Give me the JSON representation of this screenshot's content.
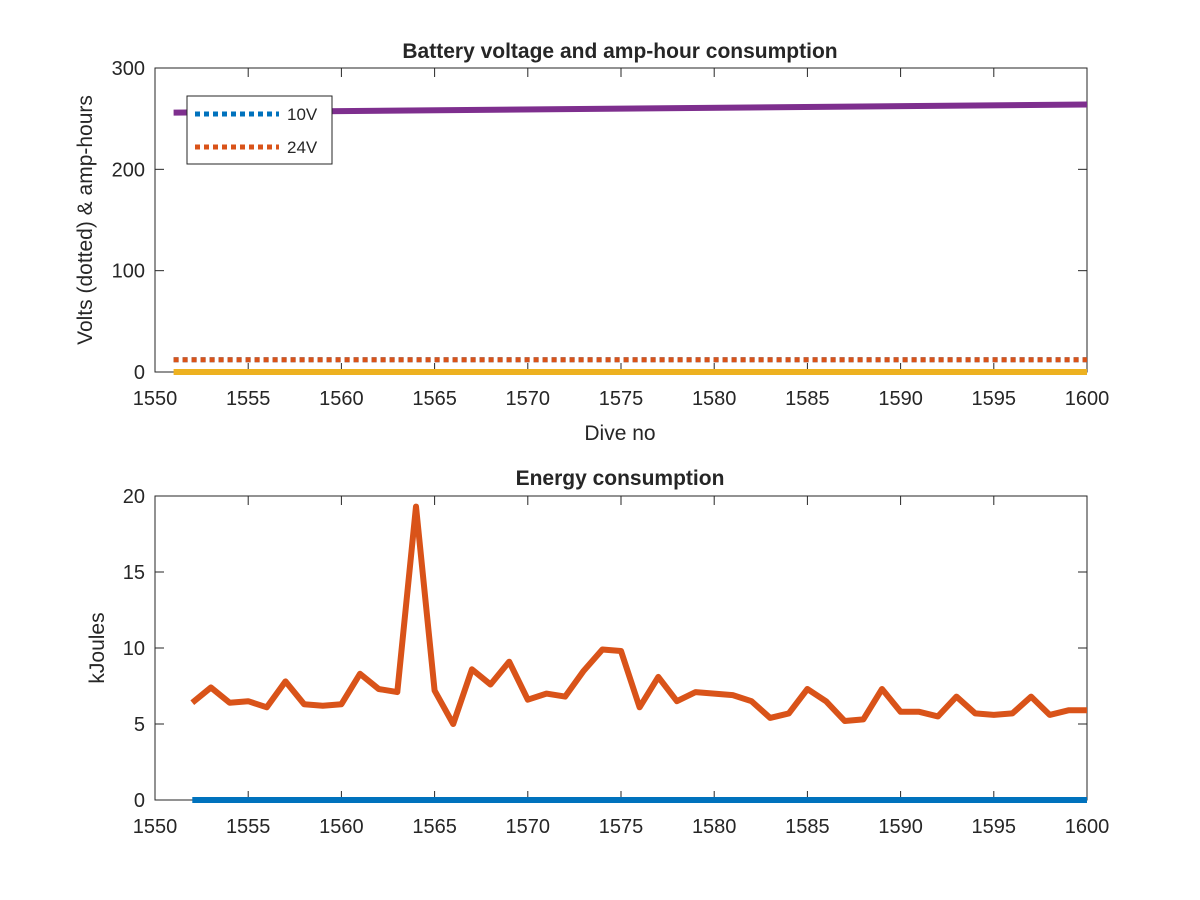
{
  "chart_data": [
    {
      "type": "line",
      "title": "Battery voltage and amp-hour consumption",
      "xlabel": "Dive no",
      "ylabel": "Volts (dotted) & amp-hours",
      "xlim": [
        1550,
        1600
      ],
      "ylim": [
        0,
        300
      ],
      "xticks": [
        "1550",
        "1555",
        "1560",
        "1565",
        "1570",
        "1575",
        "1580",
        "1585",
        "1590",
        "1595",
        "1600"
      ],
      "yticks": [
        "0",
        "100",
        "200",
        "300"
      ],
      "grid": false,
      "legend": {
        "position": "top-left",
        "entries": [
          "10V",
          "24V"
        ]
      },
      "series": [
        {
          "name": "10V",
          "style": "dotted",
          "color": "#0072BD",
          "x": [
            1551,
            1600
          ],
          "y": [
            12,
            12
          ]
        },
        {
          "name": "24V",
          "style": "dotted",
          "color": "#D95319",
          "x": [
            1551,
            1600
          ],
          "y": [
            12,
            12
          ]
        },
        {
          "style": "solid",
          "color": "#EDB120",
          "x": [
            1551,
            1600
          ],
          "y": [
            0,
            0
          ]
        },
        {
          "style": "solid",
          "color": "#7E2F8E",
          "x": [
            1551,
            1600
          ],
          "y": [
            256,
            264
          ]
        }
      ]
    },
    {
      "type": "line",
      "title": "Energy consumption",
      "xlabel": "",
      "ylabel": "kJoules",
      "xlim": [
        1550,
        1600
      ],
      "ylim": [
        0,
        20
      ],
      "xticks": [
        "1550",
        "1555",
        "1560",
        "1565",
        "1570",
        "1575",
        "1580",
        "1585",
        "1590",
        "1595",
        "1600"
      ],
      "yticks": [
        "0",
        "5",
        "10",
        "15",
        "20"
      ],
      "grid": false,
      "series": [
        {
          "style": "solid",
          "color": "#0072BD",
          "x": [
            1552,
            1600
          ],
          "y": [
            0,
            0
          ]
        },
        {
          "style": "solid",
          "color": "#D95319",
          "x": [
            1552,
            1553,
            1554,
            1555,
            1556,
            1557,
            1558,
            1559,
            1560,
            1561,
            1562,
            1563,
            1564,
            1565,
            1566,
            1567,
            1568,
            1569,
            1570,
            1571,
            1572,
            1573,
            1574,
            1575,
            1576,
            1577,
            1578,
            1579,
            1580,
            1581,
            1582,
            1583,
            1584,
            1585,
            1586,
            1587,
            1588,
            1589,
            1590,
            1591,
            1592,
            1593,
            1594,
            1595,
            1596,
            1597,
            1598,
            1599,
            1600
          ],
          "y": [
            6.4,
            7.4,
            6.4,
            6.5,
            6.1,
            7.8,
            6.3,
            6.2,
            6.3,
            8.3,
            7.3,
            7.1,
            19.3,
            7.2,
            5.0,
            8.6,
            7.6,
            9.1,
            6.6,
            7.0,
            6.8,
            8.5,
            9.9,
            9.8,
            6.1,
            8.1,
            6.5,
            7.1,
            7.0,
            6.9,
            6.5,
            5.4,
            5.7,
            7.3,
            6.5,
            5.2,
            5.3,
            7.3,
            5.8,
            5.8,
            5.5,
            6.8,
            5.7,
            5.6,
            5.7,
            6.8,
            5.6,
            5.9,
            5.9
          ]
        }
      ]
    }
  ]
}
